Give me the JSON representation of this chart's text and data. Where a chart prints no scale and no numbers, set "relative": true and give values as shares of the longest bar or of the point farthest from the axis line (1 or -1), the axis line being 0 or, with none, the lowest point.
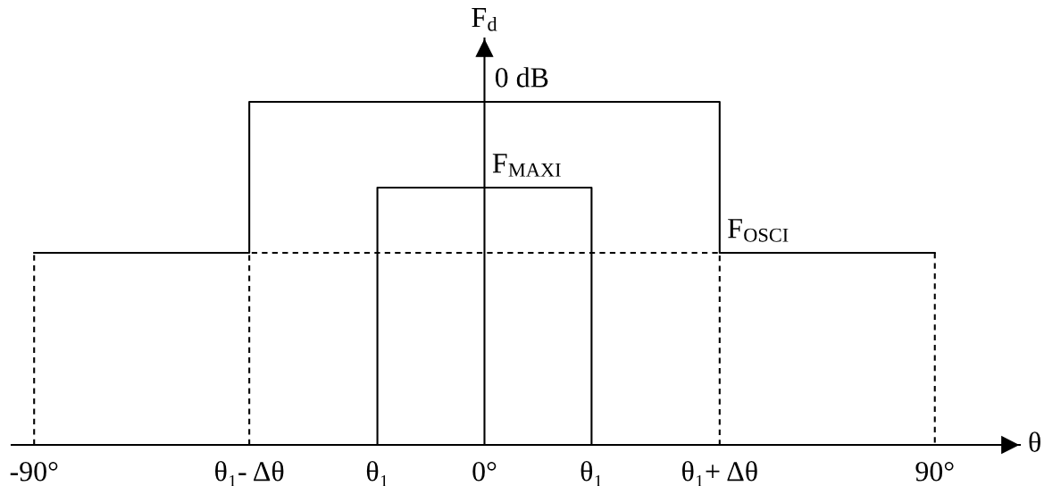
{
  "chart_data": {
    "type": "line",
    "relative": true,
    "xlabel": "θ",
    "ylabel": "F$_{d}$",
    "tick_labels": "x",
    "xlim": [
      -94.5,
      107
    ],
    "xticks": [
      {
        "value": -90,
        "label": "-90°"
      },
      {
        "value": -47,
        "label": "θ₁- Δθ"
      },
      {
        "value": -21.4,
        "label": "θ₁"
      },
      {
        "value": 0,
        "label": "0°"
      },
      {
        "value": 21.4,
        "label": "θ₁"
      },
      {
        "value": 47,
        "label": "θ₁+ Δθ"
      },
      {
        "value": 90,
        "label": "90°"
      }
    ],
    "series": [
      {
        "color": "#000000",
        "line_style": "dashed",
        "x": [
          -90,
          -90
        ],
        "values": [
          0,
          0.56
        ]
      },
      {
        "color": "#000000",
        "line_style": "dashed",
        "x": [
          -47,
          -47,
          47,
          47
        ],
        "values": [
          0,
          0.56,
          0.56,
          0
        ]
      },
      {
        "color": "#000000",
        "line_style": "dashed",
        "x": [
          90,
          90
        ],
        "values": [
          0.56,
          0
        ]
      },
      {
        "color": "#000000",
        "line_style": "solid",
        "x": [
          -90,
          -47,
          -47,
          47,
          47,
          90
        ],
        "values": [
          0.56,
          0.56,
          1,
          1,
          0.56,
          0.56
        ]
      },
      {
        "color": "#000000",
        "line_style": "solid",
        "x": [
          -21.4,
          -21.4,
          21.4,
          21.4
        ],
        "values": [
          0,
          0.75,
          0.75,
          0
        ]
      }
    ],
    "annotations": [
      {
        "text": "0 dB",
        "x": 2,
        "y": 1
      },
      {
        "text": "F$_{MAXI}$",
        "x": 1.5,
        "y": 0.75
      },
      {
        "text": "F$_{OSCI}$",
        "x": 48.5,
        "y": 0.56
      }
    ]
  }
}
